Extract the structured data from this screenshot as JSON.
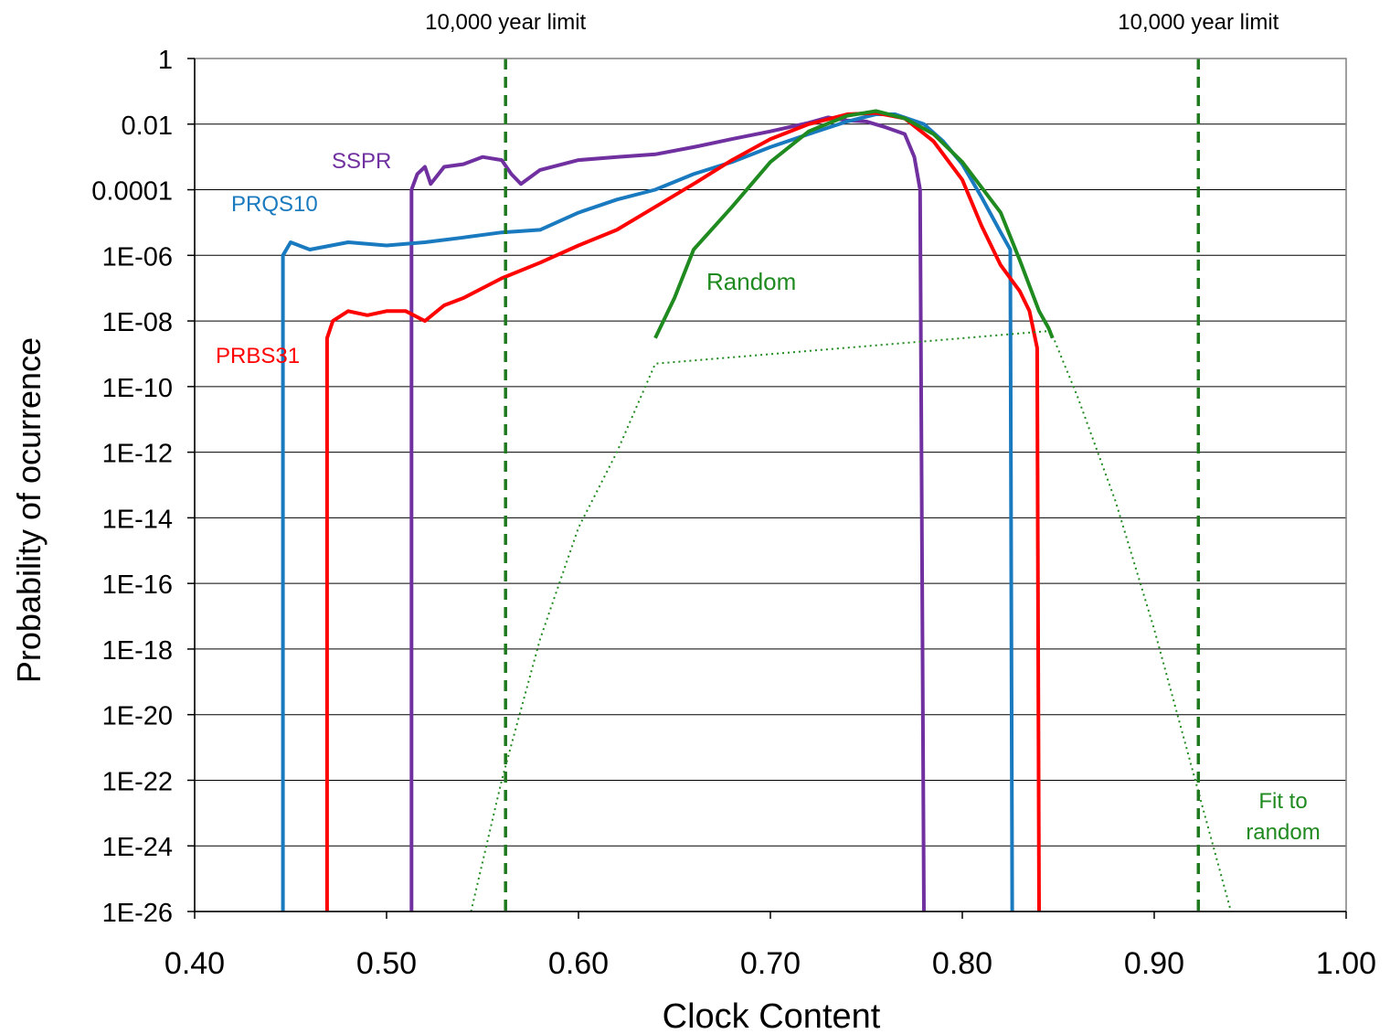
{
  "chart_data": {
    "type": "line",
    "xlabel": "Clock Content",
    "ylabel": "Probability of ocurrence",
    "xlim": [
      0.4,
      1.0
    ],
    "x_ticks": [
      "0.40",
      "0.50",
      "0.60",
      "0.70",
      "0.80",
      "0.90",
      "1.00"
    ],
    "y_scale": "log",
    "ylim": [
      1e-26,
      1
    ],
    "y_ticks": [
      "1",
      "0.01",
      "0.0001",
      "1E-06",
      "1E-08",
      "1E-10",
      "1E-12",
      "1E-14",
      "1E-16",
      "1E-18",
      "1E-20",
      "1E-22",
      "1E-24",
      "1E-26"
    ],
    "grid": "horizontal",
    "reference_lines": [
      {
        "x": 0.562,
        "label": "10,000 year limit",
        "color": "#1f7a1f"
      },
      {
        "x": 0.923,
        "label": "10,000 year limit",
        "color": "#1f7a1f"
      }
    ],
    "annotations": [
      {
        "text": "SSPR",
        "color": "#7030a0"
      },
      {
        "text": "PRQS10",
        "color": "#1a7abf"
      },
      {
        "text": "PRBS31",
        "color": "#ff0000"
      },
      {
        "text": "Random",
        "color": "#1f8a1f"
      },
      {
        "text": "Fit to random",
        "color": "#1f8a1f"
      }
    ],
    "series": [
      {
        "color": "#7030a0",
        "points": [
          [
            0.513,
            1e-26
          ],
          [
            0.513,
            0.0001
          ],
          [
            0.516,
            0.0003
          ],
          [
            0.52,
            0.0005
          ],
          [
            0.523,
            0.00015
          ],
          [
            0.53,
            0.0005
          ],
          [
            0.54,
            0.0006
          ],
          [
            0.55,
            0.001
          ],
          [
            0.56,
            0.0008
          ],
          [
            0.565,
            0.0003
          ],
          [
            0.57,
            0.00015
          ],
          [
            0.58,
            0.0004
          ],
          [
            0.6,
            0.0008
          ],
          [
            0.62,
            0.001
          ],
          [
            0.64,
            0.0012
          ],
          [
            0.66,
            0.002
          ],
          [
            0.68,
            0.0035
          ],
          [
            0.7,
            0.006
          ],
          [
            0.72,
            0.011
          ],
          [
            0.73,
            0.016
          ],
          [
            0.74,
            0.013
          ],
          [
            0.75,
            0.012
          ],
          [
            0.76,
            0.008
          ],
          [
            0.77,
            0.005
          ],
          [
            0.775,
            0.001
          ],
          [
            0.778,
            0.0001
          ],
          [
            0.78,
            1e-26
          ]
        ]
      },
      {
        "color": "#1a7abf",
        "points": [
          [
            0.446,
            1e-26
          ],
          [
            0.446,
            1e-06
          ],
          [
            0.45,
            2.5e-06
          ],
          [
            0.46,
            1.5e-06
          ],
          [
            0.48,
            2.5e-06
          ],
          [
            0.5,
            2e-06
          ],
          [
            0.52,
            2.5e-06
          ],
          [
            0.54,
            3.5e-06
          ],
          [
            0.56,
            5e-06
          ],
          [
            0.58,
            6e-06
          ],
          [
            0.6,
            2e-05
          ],
          [
            0.62,
            5e-05
          ],
          [
            0.64,
            0.0001
          ],
          [
            0.66,
            0.0003
          ],
          [
            0.68,
            0.0007
          ],
          [
            0.7,
            0.002
          ],
          [
            0.72,
            0.005
          ],
          [
            0.74,
            0.012
          ],
          [
            0.755,
            0.02
          ],
          [
            0.765,
            0.02
          ],
          [
            0.78,
            0.01
          ],
          [
            0.79,
            0.003
          ],
          [
            0.8,
            0.0006
          ],
          [
            0.81,
            6e-05
          ],
          [
            0.82,
            5e-06
          ],
          [
            0.825,
            1.5e-06
          ],
          [
            0.826,
            1e-26
          ]
        ]
      },
      {
        "color": "#ff0000",
        "points": [
          [
            0.469,
            1e-26
          ],
          [
            0.469,
            3e-09
          ],
          [
            0.472,
            1e-08
          ],
          [
            0.48,
            2e-08
          ],
          [
            0.49,
            1.5e-08
          ],
          [
            0.5,
            2e-08
          ],
          [
            0.51,
            2e-08
          ],
          [
            0.52,
            1e-08
          ],
          [
            0.53,
            3e-08
          ],
          [
            0.54,
            5e-08
          ],
          [
            0.56,
            2e-07
          ],
          [
            0.58,
            6e-07
          ],
          [
            0.6,
            2e-06
          ],
          [
            0.62,
            6e-06
          ],
          [
            0.64,
            3e-05
          ],
          [
            0.66,
            0.00015
          ],
          [
            0.68,
            0.0008
          ],
          [
            0.7,
            0.0035
          ],
          [
            0.72,
            0.01
          ],
          [
            0.74,
            0.02
          ],
          [
            0.755,
            0.022
          ],
          [
            0.77,
            0.015
          ],
          [
            0.785,
            0.003
          ],
          [
            0.8,
            0.0002
          ],
          [
            0.81,
            8e-06
          ],
          [
            0.82,
            5e-07
          ],
          [
            0.83,
            8e-08
          ],
          [
            0.835,
            2e-08
          ],
          [
            0.839,
            1.5e-09
          ],
          [
            0.84,
            1e-26
          ]
        ]
      },
      {
        "color": "#1f8a1f",
        "points": [
          [
            0.64,
            3e-09
          ],
          [
            0.65,
            5e-08
          ],
          [
            0.66,
            1.5e-06
          ],
          [
            0.68,
            3e-05
          ],
          [
            0.7,
            0.0007
          ],
          [
            0.72,
            0.006
          ],
          [
            0.74,
            0.018
          ],
          [
            0.755,
            0.025
          ],
          [
            0.77,
            0.015
          ],
          [
            0.785,
            0.005
          ],
          [
            0.8,
            0.0007
          ],
          [
            0.82,
            2e-05
          ],
          [
            0.83,
            7e-07
          ],
          [
            0.84,
            2e-08
          ],
          [
            0.845,
            6e-09
          ],
          [
            0.847,
            3e-09
          ]
        ]
      },
      {
        "color": "#1f8a1f",
        "style": "dotted",
        "points": [
          [
            0.544,
            1e-26
          ],
          [
            0.56,
            1e-22
          ],
          [
            0.58,
            2e-18
          ],
          [
            0.6,
            5e-15
          ],
          [
            0.62,
            1e-12
          ],
          [
            0.64,
            5e-10
          ],
          [
            0.846,
            5e-09
          ],
          [
            0.86,
            5e-11
          ],
          [
            0.88,
            3e-14
          ],
          [
            0.9,
            4e-18
          ],
          [
            0.92,
            2e-22
          ],
          [
            0.94,
            1e-26
          ]
        ]
      }
    ]
  }
}
